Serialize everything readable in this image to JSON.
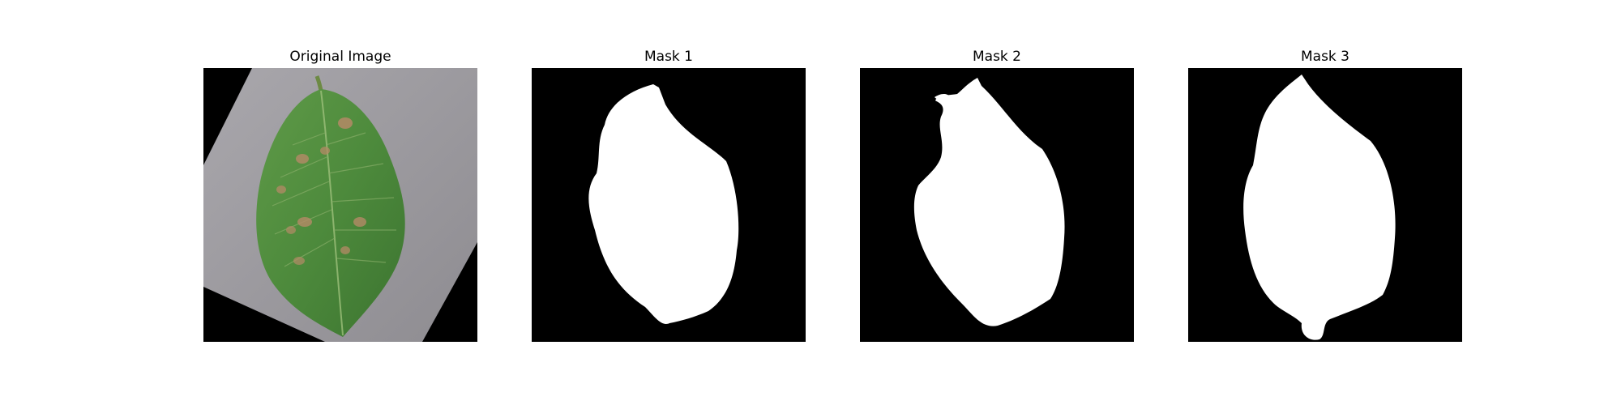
{
  "figure": {
    "panels": [
      {
        "title": "Original Image",
        "kind": "photo",
        "subject": "leaf"
      },
      {
        "title": "Mask 1",
        "kind": "mask"
      },
      {
        "title": "Mask 2",
        "kind": "mask"
      },
      {
        "title": "Mask 3",
        "kind": "mask"
      }
    ]
  },
  "colors": {
    "background": "#ffffff",
    "mask_background": "#000000",
    "mask_foreground": "#ffffff",
    "leaf_green": "#4d8a3c",
    "backdrop_gray": "#9b999e",
    "lesion_tan": "#b48a66"
  }
}
